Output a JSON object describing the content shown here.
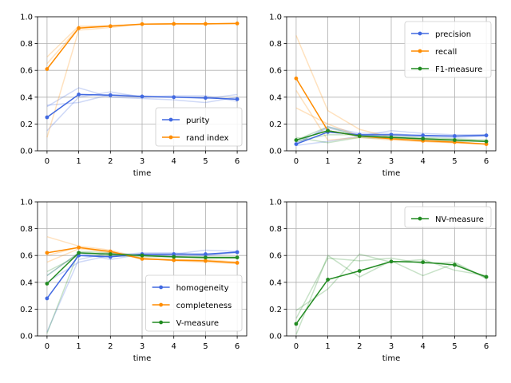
{
  "figure": {
    "colors": {
      "blue": "#4169e1",
      "orange": "#ff8c00",
      "green": "#228b22",
      "grid": "#b0b0b0",
      "axis": "#000000"
    }
  },
  "chart_data": [
    {
      "type": "line",
      "xlabel": "time",
      "ylabel": "",
      "xlim": [
        -0.3,
        6.3
      ],
      "ylim": [
        0.0,
        1.0
      ],
      "xticks": [
        0,
        1,
        2,
        3,
        4,
        5,
        6
      ],
      "yticks": [
        0.0,
        0.2,
        0.4,
        0.6,
        0.8,
        1.0
      ],
      "grid": true,
      "legend_position": "lower-right",
      "x": [
        0,
        1,
        2,
        3,
        4,
        5,
        6
      ],
      "series": [
        {
          "name": "purity",
          "color": "#4169e1",
          "values": [
            0.25,
            0.42,
            0.415,
            0.405,
            0.4,
            0.395,
            0.385
          ],
          "runs": [
            [
              0.33,
              0.47,
              0.4,
              0.39,
              0.38,
              0.36,
              0.4
            ],
            [
              0.15,
              0.4,
              0.44,
              0.4,
              0.41,
              0.41,
              0.37
            ],
            [
              0.34,
              0.36,
              0.42,
              0.41,
              0.4,
              0.39,
              0.42
            ]
          ]
        },
        {
          "name": "rand index",
          "color": "#ff8c00",
          "values": [
            0.61,
            0.915,
            0.93,
            0.945,
            0.947,
            0.947,
            0.95
          ],
          "runs": [
            [
              0.7,
              0.93,
              0.93,
              0.945,
              0.947,
              0.947,
              0.95
            ],
            [
              0.1,
              0.9,
              0.92,
              0.945,
              0.946,
              0.946,
              0.95
            ],
            [
              0.65,
              0.92,
              0.935,
              0.945,
              0.948,
              0.948,
              0.95
            ]
          ]
        }
      ]
    },
    {
      "type": "line",
      "xlabel": "time",
      "ylabel": "",
      "xlim": [
        -0.3,
        6.3
      ],
      "ylim": [
        0.0,
        1.0
      ],
      "xticks": [
        0,
        1,
        2,
        3,
        4,
        5,
        6
      ],
      "yticks": [
        0.0,
        0.2,
        0.4,
        0.6,
        0.8,
        1.0
      ],
      "grid": true,
      "legend_position": "upper-right",
      "x": [
        0,
        1,
        2,
        3,
        4,
        5,
        6
      ],
      "series": [
        {
          "name": "precision",
          "color": "#4169e1",
          "values": [
            0.05,
            0.14,
            0.12,
            0.12,
            0.115,
            0.11,
            0.115
          ],
          "runs": [
            [
              0.04,
              0.07,
              0.11,
              0.15,
              0.13,
              0.12,
              0.12
            ],
            [
              0.06,
              0.17,
              0.12,
              0.1,
              0.11,
              0.1,
              0.11
            ],
            [
              0.05,
              0.18,
              0.13,
              0.13,
              0.11,
              0.11,
              0.12
            ]
          ]
        },
        {
          "name": "recall",
          "color": "#ff8c00",
          "values": [
            0.54,
            0.15,
            0.11,
            0.09,
            0.075,
            0.065,
            0.05
          ],
          "runs": [
            [
              0.86,
              0.3,
              0.16,
              0.1,
              0.08,
              0.07,
              0.05
            ],
            [
              0.32,
              0.2,
              0.11,
              0.09,
              0.07,
              0.06,
              0.05
            ],
            [
              0.45,
              0.08,
              0.1,
              0.08,
              0.07,
              0.06,
              0.05
            ]
          ]
        },
        {
          "name": "F1-measure",
          "color": "#228b22",
          "values": [
            0.08,
            0.15,
            0.11,
            0.1,
            0.09,
            0.08,
            0.07
          ],
          "runs": [
            [
              0.07,
              0.12,
              0.12,
              0.11,
              0.1,
              0.09,
              0.08
            ],
            [
              0.1,
              0.06,
              0.1,
              0.09,
              0.08,
              0.07,
              0.07
            ],
            [
              0.08,
              0.18,
              0.11,
              0.1,
              0.09,
              0.08,
              0.07
            ]
          ]
        }
      ]
    },
    {
      "type": "line",
      "xlabel": "time",
      "ylabel": "",
      "xlim": [
        -0.3,
        6.3
      ],
      "ylim": [
        0.0,
        1.0
      ],
      "xticks": [
        0,
        1,
        2,
        3,
        4,
        5,
        6
      ],
      "yticks": [
        0.0,
        0.2,
        0.4,
        0.6,
        0.8,
        1.0
      ],
      "grid": true,
      "legend_position": "lower-right",
      "x": [
        0,
        1,
        2,
        3,
        4,
        5,
        6
      ],
      "series": [
        {
          "name": "homogeneity",
          "color": "#4169e1",
          "values": [
            0.28,
            0.6,
            0.59,
            0.61,
            0.61,
            0.61,
            0.625
          ],
          "runs": [
            [
              0.03,
              0.57,
              0.62,
              0.6,
              0.61,
              0.64,
              0.63
            ],
            [
              0.4,
              0.55,
              0.6,
              0.62,
              0.62,
              0.6,
              0.62
            ],
            [
              0.45,
              0.62,
              0.57,
              0.61,
              0.6,
              0.6,
              0.63
            ]
          ]
        },
        {
          "name": "completeness",
          "color": "#ff8c00",
          "values": [
            0.62,
            0.66,
            0.63,
            0.575,
            0.565,
            0.56,
            0.545
          ],
          "runs": [
            [
              0.74,
              0.67,
              0.64,
              0.58,
              0.56,
              0.55,
              0.54
            ],
            [
              0.55,
              0.65,
              0.63,
              0.57,
              0.57,
              0.56,
              0.55
            ],
            [
              0.6,
              0.66,
              0.62,
              0.58,
              0.57,
              0.57,
              0.55
            ]
          ]
        },
        {
          "name": "V-measure",
          "color": "#228b22",
          "values": [
            0.39,
            0.62,
            0.61,
            0.6,
            0.59,
            0.585,
            0.585
          ],
          "runs": [
            [
              0.02,
              0.63,
              0.62,
              0.6,
              0.59,
              0.58,
              0.58
            ],
            [
              0.48,
              0.6,
              0.6,
              0.59,
              0.59,
              0.59,
              0.59
            ],
            [
              0.45,
              0.62,
              0.61,
              0.6,
              0.59,
              0.585,
              0.58
            ]
          ]
        }
      ]
    },
    {
      "type": "line",
      "xlabel": "time",
      "ylabel": "",
      "xlim": [
        -0.3,
        6.3
      ],
      "ylim": [
        0.0,
        1.0
      ],
      "xticks": [
        0,
        1,
        2,
        3,
        4,
        5,
        6
      ],
      "yticks": [
        0.0,
        0.2,
        0.4,
        0.6,
        0.8,
        1.0
      ],
      "grid": true,
      "legend_position": "upper-right",
      "x": [
        0,
        1,
        2,
        3,
        4,
        5,
        6
      ],
      "series": [
        {
          "name": "NV-measure",
          "color": "#228b22",
          "values": [
            0.09,
            0.42,
            0.485,
            0.555,
            0.55,
            0.53,
            0.44
          ],
          "runs": [
            [
              0.01,
              0.6,
              0.44,
              0.56,
              0.45,
              0.54,
              0.43
            ],
            [
              0.19,
              0.35,
              0.61,
              0.55,
              0.57,
              0.49,
              0.45
            ],
            [
              0.13,
              0.58,
              0.56,
              0.58,
              0.54,
              0.55,
              0.43
            ]
          ]
        }
      ]
    }
  ]
}
